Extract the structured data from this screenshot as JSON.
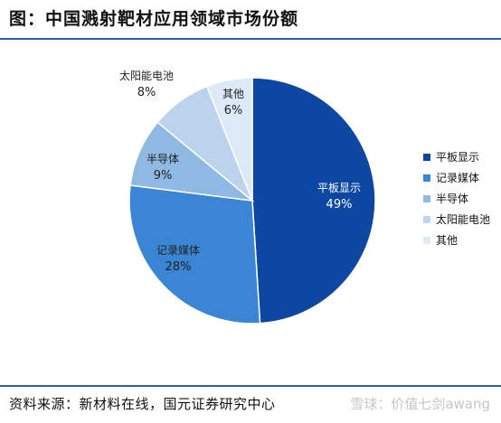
{
  "title": "图：中国溅射靶材应用领域市场份额",
  "source": "资料来源：新材料在线，国元证券研究中心",
  "watermark": "雪球：价值七剑awang",
  "chart_data": {
    "type": "pie",
    "title": "",
    "slices": [
      {
        "name": "平板显示",
        "value": 49,
        "label": "49%",
        "color": "#0d47a1"
      },
      {
        "name": "记录媒体",
        "value": 28,
        "label": "28%",
        "color": "#3a86d4"
      },
      {
        "name": "半导体",
        "value": 9,
        "label": "9%",
        "color": "#8fb8e3"
      },
      {
        "name": "太阳能电池",
        "value": 8,
        "label": "8%",
        "color": "#bcd3ee"
      },
      {
        "name": "其他",
        "value": 6,
        "label": "6%",
        "color": "#dde9f7"
      }
    ],
    "legend_position": "right"
  }
}
